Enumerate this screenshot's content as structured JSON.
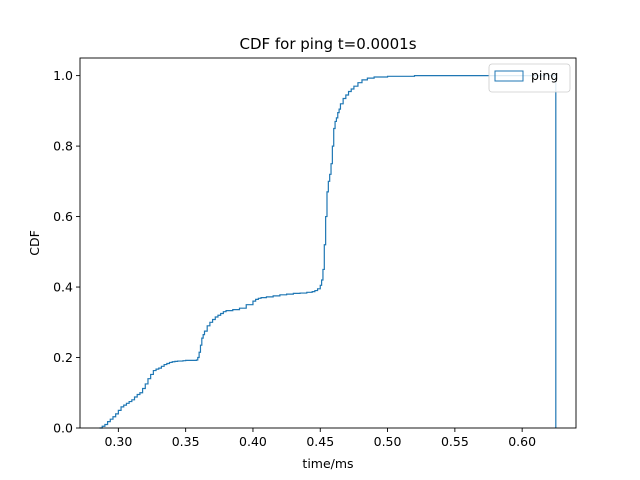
{
  "chart_data": {
    "type": "line",
    "title": "CDF for ping t=0.0001s",
    "xlabel": "time/ms",
    "ylabel": "CDF",
    "xlim": [
      0.2715,
      0.64
    ],
    "ylim": [
      0,
      1.05
    ],
    "xticks": [
      0.3,
      0.35,
      0.4,
      0.45,
      0.5,
      0.55,
      0.6,
      0.65
    ],
    "xtick_labels": [
      "0.30",
      "0.35",
      "0.40",
      "0.45",
      "0.50",
      "0.55",
      "0.60",
      ""
    ],
    "yticks": [
      0.0,
      0.2,
      0.4,
      0.6,
      0.8,
      1.0
    ],
    "ytick_labels": [
      "0.0",
      "0.2",
      "0.4",
      "0.6",
      "0.8",
      "1.0"
    ],
    "grid": false,
    "legend_position": "top-right",
    "series": [
      {
        "name": "ping",
        "color": "#1f77b4",
        "step": true,
        "x": [
          0.286,
          0.288,
          0.29,
          0.292,
          0.294,
          0.296,
          0.298,
          0.3,
          0.302,
          0.304,
          0.306,
          0.308,
          0.31,
          0.312,
          0.314,
          0.316,
          0.318,
          0.32,
          0.322,
          0.324,
          0.326,
          0.328,
          0.33,
          0.332,
          0.334,
          0.336,
          0.338,
          0.34,
          0.342,
          0.344,
          0.346,
          0.348,
          0.35,
          0.352,
          0.354,
          0.356,
          0.358,
          0.359,
          0.36,
          0.361,
          0.362,
          0.363,
          0.364,
          0.366,
          0.368,
          0.37,
          0.372,
          0.374,
          0.376,
          0.378,
          0.38,
          0.385,
          0.39,
          0.395,
          0.4,
          0.402,
          0.404,
          0.406,
          0.41,
          0.415,
          0.42,
          0.425,
          0.43,
          0.435,
          0.44,
          0.444,
          0.446,
          0.448,
          0.45,
          0.451,
          0.452,
          0.453,
          0.454,
          0.455,
          0.456,
          0.457,
          0.458,
          0.459,
          0.46,
          0.461,
          0.462,
          0.463,
          0.464,
          0.465,
          0.467,
          0.469,
          0.471,
          0.473,
          0.475,
          0.478,
          0.481,
          0.485,
          0.49,
          0.5,
          0.52,
          0.56,
          0.6,
          0.625,
          0.625
        ],
        "y": [
          0.0,
          0.005,
          0.01,
          0.018,
          0.025,
          0.032,
          0.04,
          0.05,
          0.06,
          0.065,
          0.07,
          0.075,
          0.08,
          0.088,
          0.095,
          0.1,
          0.112,
          0.125,
          0.14,
          0.152,
          0.163,
          0.167,
          0.17,
          0.175,
          0.18,
          0.183,
          0.186,
          0.188,
          0.189,
          0.19,
          0.19,
          0.191,
          0.192,
          0.192,
          0.192,
          0.192,
          0.193,
          0.2,
          0.215,
          0.235,
          0.255,
          0.265,
          0.275,
          0.29,
          0.3,
          0.308,
          0.315,
          0.32,
          0.325,
          0.33,
          0.333,
          0.336,
          0.34,
          0.35,
          0.36,
          0.365,
          0.368,
          0.37,
          0.372,
          0.375,
          0.378,
          0.38,
          0.382,
          0.383,
          0.385,
          0.387,
          0.39,
          0.395,
          0.405,
          0.42,
          0.45,
          0.52,
          0.6,
          0.67,
          0.7,
          0.72,
          0.75,
          0.8,
          0.85,
          0.87,
          0.88,
          0.895,
          0.905,
          0.92,
          0.935,
          0.945,
          0.955,
          0.962,
          0.97,
          0.98,
          0.988,
          0.993,
          0.996,
          0.998,
          1.0,
          1.0,
          1.0,
          1.0,
          0.0
        ]
      }
    ]
  }
}
